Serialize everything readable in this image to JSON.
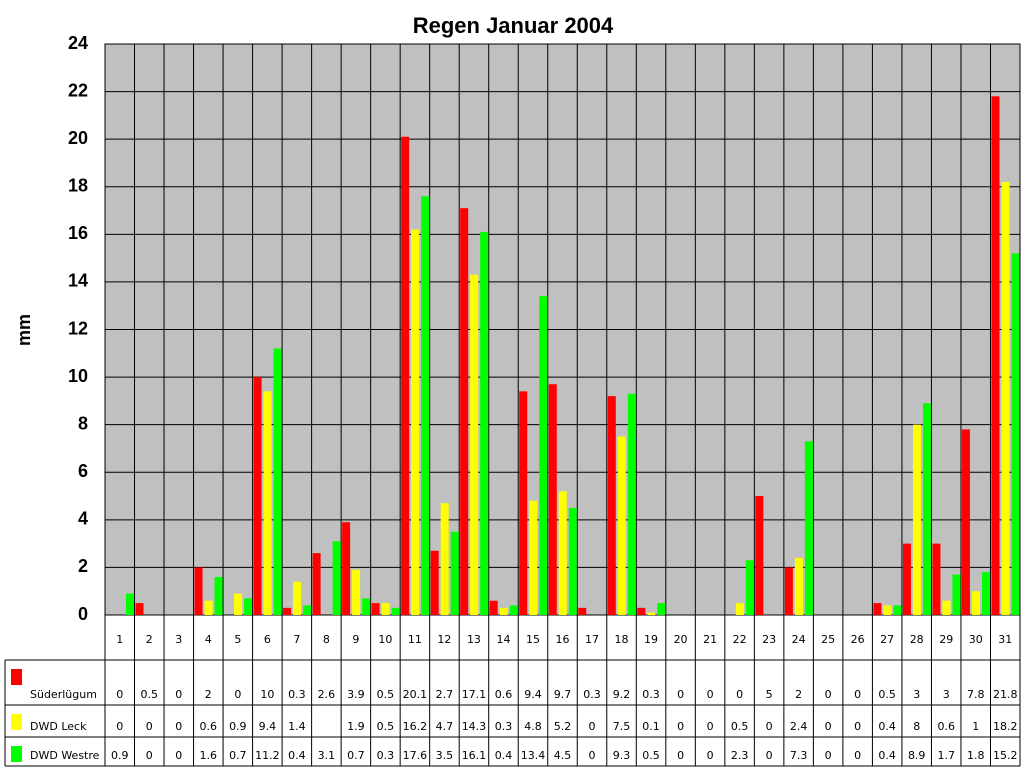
{
  "chart_data": {
    "type": "bar",
    "title": "Regen Januar 2004",
    "y_label": "mm",
    "categories": [
      "1",
      "2",
      "3",
      "4",
      "5",
      "6",
      "7",
      "8",
      "9",
      "10",
      "11",
      "12",
      "13",
      "14",
      "15",
      "16",
      "17",
      "18",
      "19",
      "20",
      "21",
      "22",
      "23",
      "24",
      "25",
      "26",
      "27",
      "28",
      "29",
      "30",
      "31"
    ],
    "series": [
      {
        "name": "Süderlügum",
        "color": "#ff0000",
        "values": [
          0,
          0.5,
          0,
          2,
          0,
          10,
          0.3,
          2.6,
          3.9,
          0.5,
          20.1,
          2.7,
          17.1,
          0.6,
          9.4,
          9.7,
          0.3,
          9.2,
          0.3,
          0,
          0,
          0,
          5,
          2,
          0,
          0,
          0.5,
          3,
          3,
          7.8,
          21.8
        ]
      },
      {
        "name": "DWD Leck",
        "color": "#ffff00",
        "values": [
          0,
          0,
          0,
          0.6,
          0.9,
          9.4,
          1.4,
          null,
          1.9,
          0.5,
          16.2,
          4.7,
          14.3,
          0.3,
          4.8,
          5.2,
          0,
          7.5,
          0.1,
          0,
          0,
          0.5,
          0,
          2.4,
          0,
          0,
          0.4,
          8,
          0.6,
          1,
          18.2
        ]
      },
      {
        "name": "DWD Westre",
        "color": "#00ff00",
        "values": [
          0.9,
          0,
          0,
          1.6,
          0.7,
          11.2,
          0.4,
          3.1,
          0.7,
          0.3,
          17.6,
          3.5,
          16.1,
          0.4,
          13.4,
          4.5,
          0,
          9.3,
          0.5,
          0,
          0,
          2.3,
          0,
          7.3,
          0,
          0,
          0.4,
          8.9,
          1.7,
          1.8,
          15.2
        ]
      }
    ],
    "ylim": [
      0,
      24
    ],
    "yticks": [
      0,
      2,
      4,
      6,
      8,
      10,
      12,
      14,
      16,
      18,
      20,
      22,
      24
    ],
    "grid": true,
    "plot_background": "#c0c0c0"
  }
}
